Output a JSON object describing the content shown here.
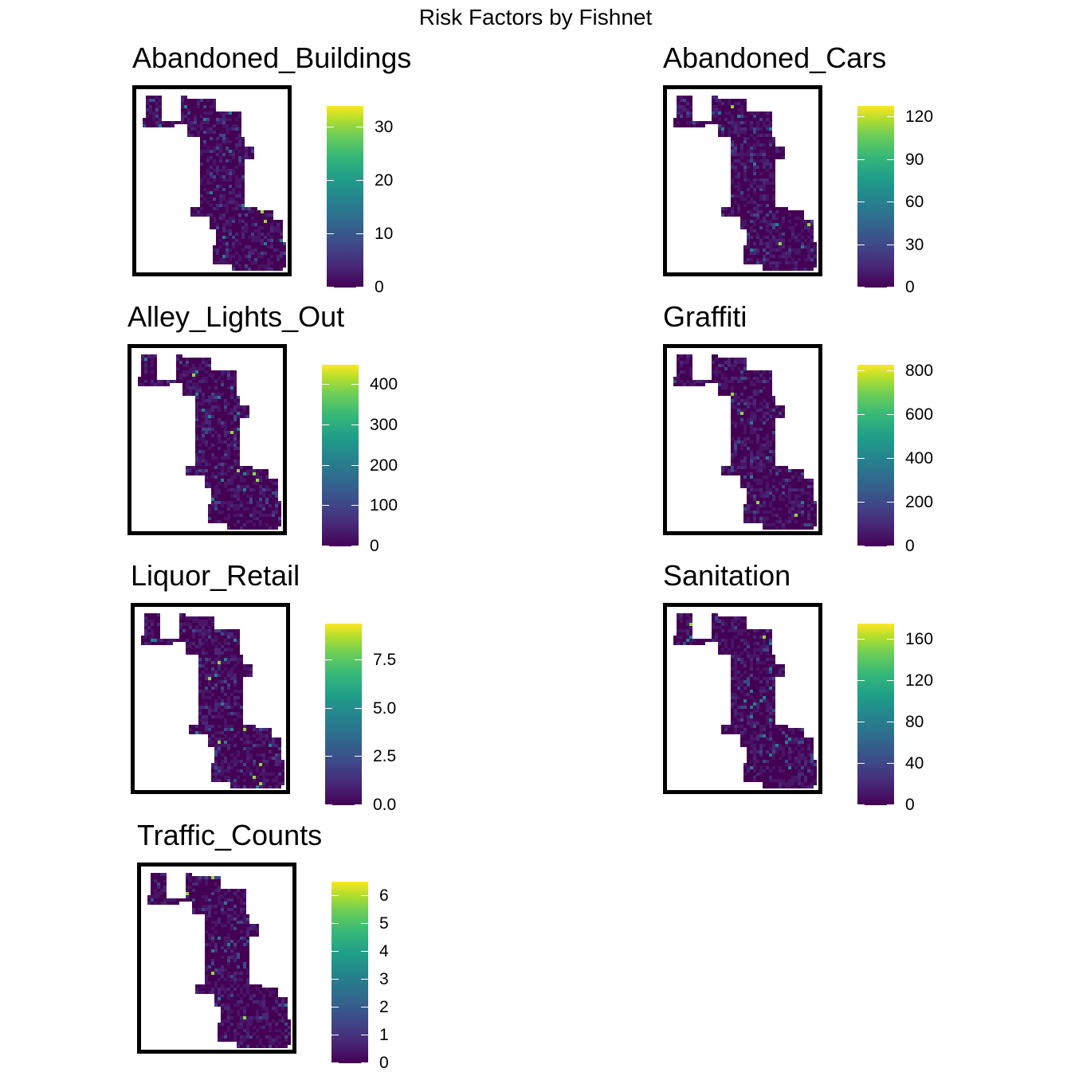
{
  "title": "Risk Factors by Fishnet",
  "colors": {
    "low": "#440154",
    "high": "#fde725",
    "frame": "#000000"
  },
  "panels": [
    {
      "name": "Abandoned_Buildings",
      "max": 34,
      "ticks": [
        "0",
        "10",
        "20",
        "30"
      ],
      "tick_values": [
        0,
        10,
        20,
        30
      ]
    },
    {
      "name": "Abandoned_Cars",
      "max": 128,
      "ticks": [
        "0",
        "30",
        "60",
        "90",
        "120"
      ],
      "tick_values": [
        0,
        30,
        60,
        90,
        120
      ]
    },
    {
      "name": "Alley_Lights_Out",
      "max": 450,
      "ticks": [
        "0",
        "100",
        "200",
        "300",
        "400"
      ],
      "tick_values": [
        0,
        100,
        200,
        300,
        400
      ]
    },
    {
      "name": "Graffiti",
      "max": 830,
      "ticks": [
        "0",
        "200",
        "400",
        "600",
        "800"
      ],
      "tick_values": [
        0,
        200,
        400,
        600,
        800
      ]
    },
    {
      "name": "Liquor_Retail",
      "max": 9.4,
      "ticks": [
        "0.0",
        "2.5",
        "5.0",
        "7.5"
      ],
      "tick_values": [
        0,
        2.5,
        5.0,
        7.5
      ]
    },
    {
      "name": "Sanitation",
      "max": 175,
      "ticks": [
        "0",
        "40",
        "80",
        "120",
        "160"
      ],
      "tick_values": [
        0,
        40,
        80,
        120,
        160
      ]
    },
    {
      "name": "Traffic_Counts",
      "max": 6.5,
      "ticks": [
        "0",
        "1",
        "2",
        "3",
        "4",
        "5",
        "6"
      ],
      "tick_values": [
        0,
        1,
        2,
        3,
        4,
        5,
        6
      ]
    }
  ]
}
